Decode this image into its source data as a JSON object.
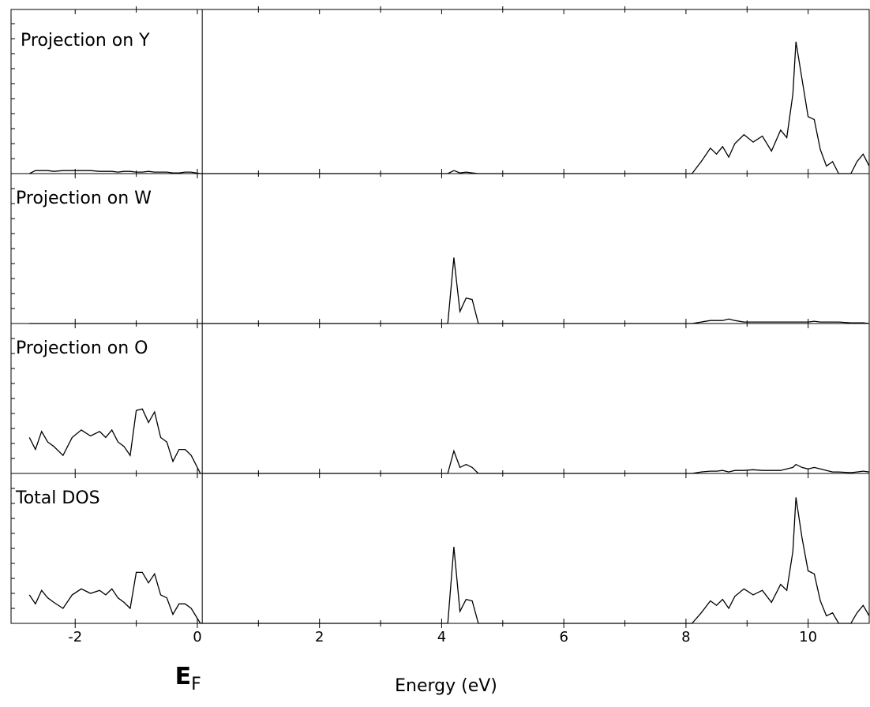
{
  "chart_data": {
    "type": "line",
    "xlabel": "Energy (eV)",
    "annotation": {
      "text": "E",
      "subscript": "F",
      "x": 0.08
    },
    "xlim": [
      -3.05,
      11
    ],
    "xticks": [
      -2,
      0,
      2,
      4,
      6,
      8,
      10
    ],
    "ylim": [
      0,
      100
    ],
    "color": "#000000",
    "x": [
      -2.75,
      -2.65,
      -2.55,
      -2.45,
      -2.35,
      -2.2,
      -2.05,
      -1.9,
      -1.75,
      -1.6,
      -1.5,
      -1.4,
      -1.3,
      -1.2,
      -1.1,
      -1.0,
      -0.9,
      -0.8,
      -0.7,
      -0.6,
      -0.5,
      -0.4,
      -0.3,
      -0.2,
      -0.1,
      0.05,
      4.1,
      4.2,
      4.3,
      4.4,
      4.5,
      4.6,
      8.1,
      8.25,
      8.4,
      8.5,
      8.6,
      8.7,
      8.8,
      8.95,
      9.1,
      9.25,
      9.4,
      9.55,
      9.65,
      9.75,
      9.8,
      9.9,
      10.0,
      10.1,
      10.2,
      10.3,
      10.4,
      10.5,
      10.7,
      10.8,
      10.9,
      11.0
    ],
    "series": [
      {
        "name": "Projection on Y",
        "values": [
          0,
          2,
          2,
          2,
          1.5,
          2,
          2,
          2,
          2,
          1.5,
          1.5,
          1.5,
          1,
          1.5,
          1.5,
          1,
          1,
          1.5,
          1,
          1,
          1,
          0.5,
          0.5,
          1,
          1,
          0,
          0,
          2,
          0.5,
          1,
          0.5,
          0,
          0,
          8,
          17,
          13,
          18,
          11,
          20,
          26,
          21,
          25,
          15,
          29,
          24,
          53,
          88,
          63,
          38,
          36,
          16,
          5,
          8,
          0,
          0,
          8,
          13,
          5
        ]
      },
      {
        "name": "Projection on W",
        "values": [
          0,
          0,
          0,
          0,
          0,
          0,
          0,
          0,
          0,
          0,
          0,
          0,
          0,
          0,
          0,
          0,
          0,
          0,
          0,
          0,
          0,
          0,
          0,
          0,
          0,
          0,
          0,
          44,
          8,
          17,
          16,
          0,
          0,
          1,
          2,
          2,
          2,
          3,
          2,
          1,
          1,
          1,
          1,
          1,
          1,
          1,
          1,
          1,
          1,
          1.5,
          1,
          1,
          1,
          1,
          0.5,
          0.5,
          0.5,
          0
        ]
      },
      {
        "name": "Projection on O",
        "values": [
          24,
          16,
          28,
          21,
          18,
          12,
          24,
          29,
          25,
          28,
          24,
          29,
          21,
          18,
          12,
          42,
          43,
          34,
          41,
          24,
          21,
          8,
          16,
          16,
          12,
          0,
          0,
          15,
          4,
          6,
          4,
          0,
          0,
          1,
          1.5,
          1.5,
          2,
          1,
          2,
          2,
          2.5,
          2,
          2,
          2,
          3,
          4,
          6,
          4,
          3,
          4,
          3,
          2,
          1,
          1,
          0.5,
          1,
          1.5,
          1
        ]
      },
      {
        "name": "Total DOS",
        "values": [
          19,
          13,
          22,
          17,
          14,
          10,
          19,
          23,
          20,
          22,
          19,
          23,
          17,
          14,
          10,
          34,
          34,
          27,
          33,
          19,
          17,
          6,
          13,
          13,
          10,
          0,
          0,
          51,
          8,
          16,
          15,
          0,
          0,
          7,
          15,
          12,
          16,
          10,
          18,
          23,
          19,
          22,
          14,
          26,
          22,
          48,
          84,
          57,
          35,
          33,
          15,
          5,
          7,
          0,
          0,
          7,
          12,
          5
        ]
      }
    ]
  }
}
